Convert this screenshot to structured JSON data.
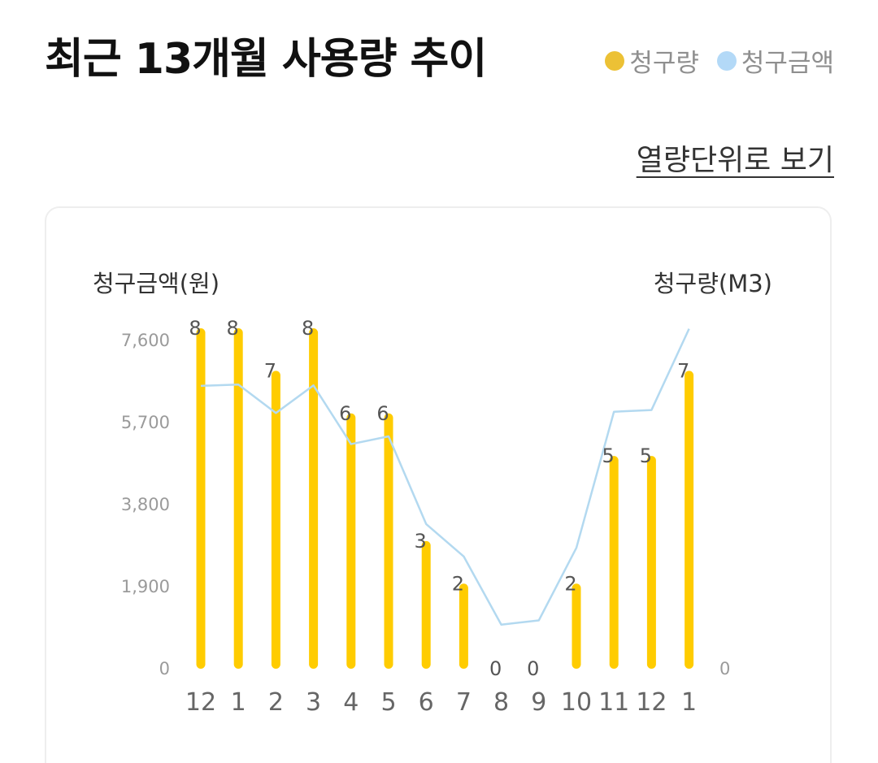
{
  "header": {
    "title": "최근 13개월 사용량 추이",
    "legend": [
      {
        "label": "청구량",
        "color": "#ECC135"
      },
      {
        "label": "청구금액",
        "color": "#B3D9F7"
      }
    ],
    "unit_link": "열량단위로 보기"
  },
  "chart_data": {
    "type": "bar",
    "categories": [
      "12",
      "1",
      "2",
      "3",
      "4",
      "5",
      "6",
      "7",
      "8",
      "9",
      "10",
      "11",
      "12",
      "1"
    ],
    "series": [
      {
        "name": "청구량",
        "type": "bar",
        "axis": "right",
        "color": "#FFCC00",
        "values": [
          8,
          8,
          7,
          8,
          6,
          6,
          3,
          2,
          0,
          0,
          2,
          5,
          5,
          7
        ],
        "data_labels": [
          "8",
          "8",
          "7",
          "8",
          "6",
          "6",
          "3",
          "2",
          "0",
          "0",
          "2",
          "5",
          "5",
          "7"
        ]
      },
      {
        "name": "청구금액",
        "type": "line",
        "axis": "left",
        "color": "#B3D9F0",
        "values": [
          6550,
          6580,
          5920,
          6560,
          5200,
          5380,
          3350,
          2600,
          1020,
          1120,
          2800,
          5950,
          5990,
          7870
        ]
      }
    ],
    "left_axis": {
      "title": "청구금액(원)",
      "ticks": [
        "0",
        "1,900",
        "3,800",
        "5,700",
        "7,600"
      ],
      "tick_values": [
        0,
        1900,
        3800,
        5700,
        7600
      ],
      "range": [
        0,
        7600
      ]
    },
    "right_axis": {
      "title": "청구량(M3)",
      "ticks": [
        "0"
      ],
      "tick_values": [
        0
      ],
      "range": [
        0,
        8
      ]
    },
    "grid": false
  }
}
